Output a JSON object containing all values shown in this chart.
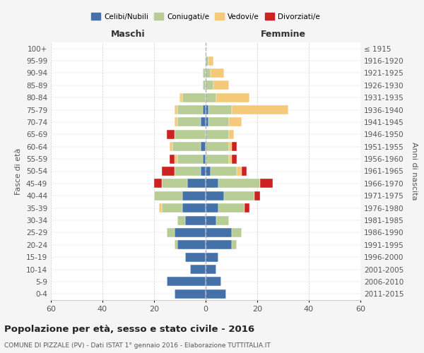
{
  "age_groups": [
    "0-4",
    "5-9",
    "10-14",
    "15-19",
    "20-24",
    "25-29",
    "30-34",
    "35-39",
    "40-44",
    "45-49",
    "50-54",
    "55-59",
    "60-64",
    "65-69",
    "70-74",
    "75-79",
    "80-84",
    "85-89",
    "90-94",
    "95-99",
    "100+"
  ],
  "birth_years": [
    "2011-2015",
    "2006-2010",
    "2001-2005",
    "1996-2000",
    "1991-1995",
    "1986-1990",
    "1981-1985",
    "1976-1980",
    "1971-1975",
    "1966-1970",
    "1961-1965",
    "1956-1960",
    "1951-1955",
    "1946-1950",
    "1941-1945",
    "1936-1940",
    "1931-1935",
    "1926-1930",
    "1921-1925",
    "1916-1920",
    "≤ 1915"
  ],
  "male": {
    "celibi": [
      12,
      15,
      6,
      8,
      11,
      12,
      8,
      9,
      9,
      7,
      2,
      1,
      2,
      0,
      2,
      1,
      0,
      0,
      0,
      0,
      0
    ],
    "coniugati": [
      0,
      0,
      0,
      0,
      1,
      3,
      3,
      8,
      11,
      10,
      10,
      10,
      11,
      12,
      9,
      10,
      9,
      1,
      1,
      0,
      0
    ],
    "vedovi": [
      0,
      0,
      0,
      0,
      0,
      0,
      0,
      1,
      0,
      0,
      0,
      1,
      1,
      0,
      1,
      1,
      1,
      0,
      0,
      0,
      0
    ],
    "divorziati": [
      0,
      0,
      0,
      0,
      0,
      0,
      0,
      0,
      0,
      3,
      5,
      2,
      0,
      3,
      0,
      0,
      0,
      0,
      0,
      0,
      0
    ]
  },
  "female": {
    "nubili": [
      8,
      6,
      4,
      5,
      10,
      10,
      4,
      5,
      7,
      5,
      2,
      0,
      0,
      0,
      1,
      1,
      0,
      0,
      0,
      0,
      0
    ],
    "coniugate": [
      0,
      0,
      0,
      0,
      2,
      4,
      5,
      10,
      12,
      16,
      10,
      9,
      9,
      9,
      8,
      9,
      4,
      3,
      2,
      1,
      0
    ],
    "vedove": [
      0,
      0,
      0,
      0,
      0,
      0,
      0,
      0,
      0,
      0,
      2,
      1,
      1,
      2,
      5,
      22,
      13,
      6,
      5,
      2,
      0
    ],
    "divorziate": [
      0,
      0,
      0,
      0,
      0,
      0,
      0,
      2,
      2,
      5,
      2,
      2,
      2,
      0,
      0,
      0,
      0,
      0,
      0,
      0,
      0
    ]
  },
  "colors": {
    "celibi": "#4472a8",
    "coniugati": "#b8cc96",
    "vedovi": "#f5c97a",
    "divorziati": "#cc2222"
  },
  "title": "Popolazione per età, sesso e stato civile - 2016",
  "subtitle": "COMUNE DI PIZZALE (PV) - Dati ISTAT 1° gennaio 2016 - Elaborazione TUTTITALIA.IT",
  "xlabel_left": "Maschi",
  "xlabel_right": "Femmine",
  "ylabel": "Fasce di età",
  "ylabel_right": "Anni di nascita",
  "xlim": 60,
  "bg_color": "#f5f5f5",
  "plot_bg": "#ffffff",
  "legend_labels": [
    "Celibi/Nubili",
    "Coniugati/e",
    "Vedovi/e",
    "Divorziati/e"
  ]
}
